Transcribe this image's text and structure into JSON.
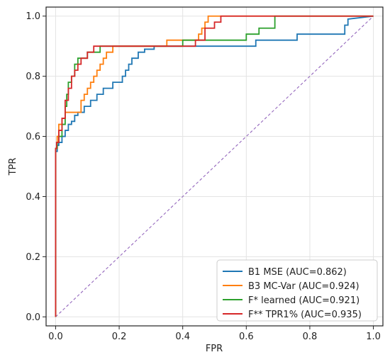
{
  "chart_data": {
    "type": "line",
    "title": "",
    "xlabel": "FPR",
    "ylabel": "TPR",
    "xlim": [
      -0.03,
      1.03
    ],
    "ylim": [
      -0.03,
      1.03
    ],
    "x_ticks": [
      "0.0",
      "0.2",
      "0.4",
      "0.6",
      "0.8",
      "1.0"
    ],
    "y_ticks": [
      "0.0",
      "0.2",
      "0.4",
      "0.6",
      "0.8",
      "1.0"
    ],
    "grid": true,
    "legend_position": "lower-right",
    "series": [
      {
        "name": "B1 MSE (AUC=0.862)",
        "color": "#1f77b4",
        "x": [
          0,
          0,
          0.005,
          0.005,
          0.01,
          0.01,
          0.02,
          0.02,
          0.03,
          0.03,
          0.04,
          0.04,
          0.05,
          0.05,
          0.06,
          0.06,
          0.07,
          0.07,
          0.09,
          0.09,
          0.11,
          0.11,
          0.13,
          0.13,
          0.15,
          0.15,
          0.18,
          0.18,
          0.21,
          0.21,
          0.22,
          0.22,
          0.23,
          0.23,
          0.24,
          0.24,
          0.26,
          0.26,
          0.28,
          0.28,
          0.31,
          0.31,
          0.33,
          0.33,
          0.44,
          0.44,
          0.63,
          0.63,
          0.66,
          0.66,
          0.76,
          0.76,
          0.85,
          0.85,
          0.91,
          0.91,
          0.92,
          0.92,
          1.0
        ],
        "y": [
          0,
          0.55,
          0.55,
          0.57,
          0.57,
          0.58,
          0.58,
          0.6,
          0.6,
          0.62,
          0.62,
          0.64,
          0.64,
          0.65,
          0.65,
          0.67,
          0.67,
          0.68,
          0.68,
          0.7,
          0.7,
          0.72,
          0.72,
          0.74,
          0.74,
          0.76,
          0.76,
          0.78,
          0.78,
          0.8,
          0.8,
          0.82,
          0.82,
          0.84,
          0.84,
          0.86,
          0.86,
          0.88,
          0.88,
          0.89,
          0.89,
          0.9,
          0.9,
          0.9,
          0.9,
          0.9,
          0.9,
          0.92,
          0.92,
          0.92,
          0.92,
          0.94,
          0.94,
          0.94,
          0.94,
          0.97,
          0.97,
          0.99,
          1.0
        ]
      },
      {
        "name": "B3 MC-Var (AUC=0.924)",
        "color": "#ff7f0e",
        "x": [
          0,
          0,
          0.005,
          0.005,
          0.01,
          0.01,
          0.02,
          0.02,
          0.03,
          0.03,
          0.08,
          0.08,
          0.09,
          0.09,
          0.1,
          0.1,
          0.11,
          0.11,
          0.12,
          0.12,
          0.13,
          0.13,
          0.14,
          0.14,
          0.15,
          0.15,
          0.16,
          0.16,
          0.18,
          0.18,
          0.35,
          0.35,
          0.45,
          0.45,
          0.46,
          0.46,
          0.47,
          0.47,
          0.48,
          0.48,
          0.5,
          0.5,
          1.0
        ],
        "y": [
          0,
          0.56,
          0.56,
          0.6,
          0.6,
          0.64,
          0.64,
          0.66,
          0.66,
          0.68,
          0.68,
          0.72,
          0.72,
          0.74,
          0.74,
          0.76,
          0.76,
          0.78,
          0.78,
          0.8,
          0.8,
          0.82,
          0.82,
          0.84,
          0.84,
          0.86,
          0.86,
          0.88,
          0.88,
          0.9,
          0.9,
          0.92,
          0.92,
          0.94,
          0.94,
          0.96,
          0.96,
          0.98,
          0.98,
          1.0,
          1.0,
          1.0,
          1.0
        ]
      },
      {
        "name": "F* learned (AUC=0.921)",
        "color": "#2ca02c",
        "x": [
          0,
          0,
          0.005,
          0.005,
          0.01,
          0.01,
          0.02,
          0.02,
          0.03,
          0.03,
          0.035,
          0.035,
          0.04,
          0.04,
          0.05,
          0.05,
          0.06,
          0.06,
          0.07,
          0.07,
          0.08,
          0.08,
          0.1,
          0.1,
          0.14,
          0.14,
          0.4,
          0.4,
          0.6,
          0.6,
          0.64,
          0.64,
          0.69,
          0.69,
          1.0
        ],
        "y": [
          0,
          0.56,
          0.56,
          0.58,
          0.58,
          0.6,
          0.6,
          0.64,
          0.64,
          0.7,
          0.7,
          0.74,
          0.74,
          0.78,
          0.78,
          0.8,
          0.8,
          0.84,
          0.84,
          0.86,
          0.86,
          0.86,
          0.86,
          0.88,
          0.88,
          0.9,
          0.9,
          0.92,
          0.92,
          0.94,
          0.94,
          0.96,
          0.96,
          1.0,
          1.0
        ]
      },
      {
        "name": "F** TPR1% (AUC=0.935)",
        "color": "#d62728",
        "x": [
          0,
          0,
          0.003,
          0.003,
          0.01,
          0.01,
          0.02,
          0.02,
          0.03,
          0.03,
          0.04,
          0.04,
          0.05,
          0.05,
          0.06,
          0.06,
          0.07,
          0.07,
          0.08,
          0.08,
          0.1,
          0.1,
          0.12,
          0.12,
          0.44,
          0.44,
          0.47,
          0.47,
          0.5,
          0.5,
          0.52,
          0.52,
          0.54,
          0.54,
          1.0
        ],
        "y": [
          0,
          0.56,
          0.56,
          0.58,
          0.58,
          0.62,
          0.62,
          0.66,
          0.66,
          0.72,
          0.72,
          0.76,
          0.76,
          0.8,
          0.8,
          0.82,
          0.82,
          0.84,
          0.84,
          0.86,
          0.86,
          0.88,
          0.88,
          0.9,
          0.9,
          0.92,
          0.92,
          0.96,
          0.96,
          0.98,
          0.98,
          1.0,
          1.0,
          1.0,
          1.0
        ]
      }
    ],
    "reference_line": {
      "x": [
        0,
        1
      ],
      "y": [
        0,
        1
      ],
      "color": "#9467bd",
      "style": "dashed"
    }
  }
}
